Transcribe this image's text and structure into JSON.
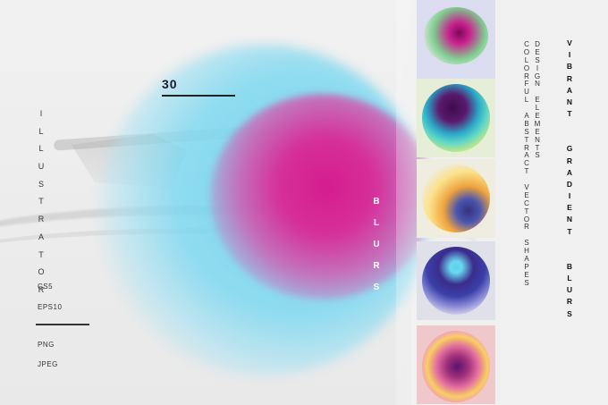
{
  "count": "30",
  "left_word": "ILLUSTRATOR",
  "formats_top": [
    "CS5",
    "EPS10"
  ],
  "formats_bottom": [
    "PNG",
    "JPEG"
  ],
  "blurs_word": "BLURS",
  "subtitle_col1": "COLORFUL ABSTRACT VECTOR SHAPES",
  "subtitle_col2": "DESIGN ELEMENTS",
  "title_lines": [
    "VIBRANT",
    "GRADIENT",
    "BLURS"
  ],
  "thumbnails": [
    {
      "name": "green-magenta-blur"
    },
    {
      "name": "teal-purple-blur"
    },
    {
      "name": "yellow-blue-blur"
    },
    {
      "name": "indigo-cyan-blur"
    },
    {
      "name": "pink-yellow-purple-blur"
    }
  ],
  "colors": {
    "magenta": "#d51c8e",
    "cyan": "#6ed7f0",
    "text_dark": "#1a1a2e"
  }
}
